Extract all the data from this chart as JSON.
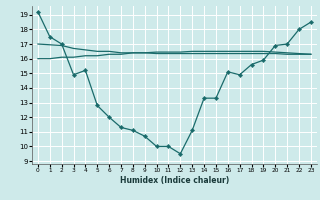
{
  "title": "",
  "xlabel": "Humidex (Indice chaleur)",
  "bg_color": "#ceeaea",
  "line_color": "#1a6b6b",
  "grid_color": "#ffffff",
  "xlim": [
    -0.5,
    23.5
  ],
  "ylim": [
    8.8,
    19.6
  ],
  "yticks": [
    9,
    10,
    11,
    12,
    13,
    14,
    15,
    16,
    17,
    18,
    19
  ],
  "xticks": [
    0,
    1,
    2,
    3,
    4,
    5,
    6,
    7,
    8,
    9,
    10,
    11,
    12,
    13,
    14,
    15,
    16,
    17,
    18,
    19,
    20,
    21,
    22,
    23
  ],
  "line1_x": [
    0,
    1,
    2,
    3,
    4,
    5,
    6,
    7,
    8,
    9,
    10,
    11,
    12,
    13,
    14,
    15,
    16,
    17,
    18,
    19,
    20,
    21,
    22,
    23
  ],
  "line1_y": [
    19.2,
    17.5,
    17.0,
    14.9,
    15.2,
    12.8,
    12.0,
    11.3,
    11.1,
    10.7,
    10.0,
    10.0,
    9.5,
    11.1,
    13.3,
    13.3,
    15.1,
    14.9,
    15.6,
    15.9,
    16.9,
    17.0,
    18.0,
    18.5
  ],
  "line2_x": [
    0,
    2,
    3,
    4,
    5,
    6,
    7,
    8,
    9,
    10,
    11,
    12,
    13,
    14,
    15,
    16,
    17,
    18,
    19,
    20,
    21,
    22,
    23
  ],
  "line2_y": [
    17.0,
    16.9,
    16.7,
    16.6,
    16.5,
    16.5,
    16.4,
    16.4,
    16.4,
    16.35,
    16.35,
    16.35,
    16.35,
    16.35,
    16.35,
    16.35,
    16.35,
    16.35,
    16.35,
    16.35,
    16.3,
    16.3,
    16.3
  ],
  "line3_x": [
    0,
    1,
    2,
    3,
    4,
    5,
    6,
    7,
    8,
    9,
    10,
    11,
    12,
    13,
    14,
    15,
    16,
    17,
    18,
    19,
    20,
    21,
    22,
    23
  ],
  "line3_y": [
    16.0,
    16.0,
    16.1,
    16.1,
    16.2,
    16.2,
    16.3,
    16.3,
    16.4,
    16.4,
    16.45,
    16.45,
    16.45,
    16.5,
    16.5,
    16.5,
    16.5,
    16.5,
    16.5,
    16.5,
    16.45,
    16.4,
    16.35,
    16.3
  ]
}
